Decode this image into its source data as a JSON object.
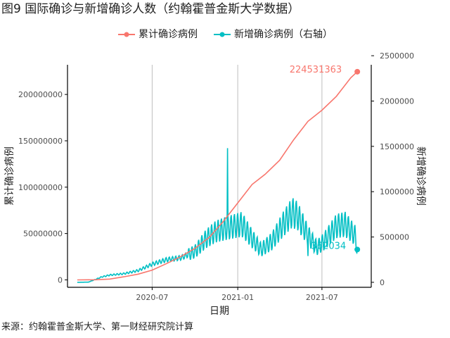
{
  "figure": {
    "title": "图9 国际确诊与新增确诊人数（约翰霍普金斯大学数据）",
    "source": "来源：约翰霍普金斯大学、第一财经研究院计算"
  },
  "colors": {
    "cumulative": "#F8766D",
    "new": "#00BFC4",
    "grid": "#bdbdbd",
    "axis": "#000000"
  },
  "chart_data": {
    "type": "line",
    "xlabel": "日期",
    "ylabel_left": "累计确诊病例",
    "ylabel_right": "新增确诊病例",
    "x_ticks": [
      "2020-07",
      "2021-01",
      "2021-07"
    ],
    "xlim": [
      "2020-01-01",
      "2021-10-15"
    ],
    "ylim_left": [
      -8000000,
      232000000
    ],
    "ylim_right": [
      -55000,
      2400000
    ],
    "y_ticks_left": [
      0,
      50000000,
      100000000,
      150000000,
      200000000
    ],
    "y_ticks_left_labels": [
      "0",
      "50000000",
      "100000000",
      "150000000",
      "200000000"
    ],
    "y_ticks_right": [
      0,
      500000,
      1000000,
      1500000,
      2000000,
      2500000
    ],
    "y_ticks_right_labels": [
      "0",
      "500000",
      "1000000",
      "1500000",
      "2000000",
      "2500000"
    ],
    "grid": "vertical",
    "legend": "top-center",
    "series": [
      {
        "name": "累计确诊病例",
        "axis": "left",
        "end_label": "224531363",
        "points": [
          [
            "2020-01-22",
            0
          ],
          [
            "2020-03-01",
            90000
          ],
          [
            "2020-04-01",
            900000
          ],
          [
            "2020-05-01",
            3300000
          ],
          [
            "2020-06-01",
            6200000
          ],
          [
            "2020-07-01",
            10500000
          ],
          [
            "2020-08-01",
            17600000
          ],
          [
            "2020-09-01",
            25300000
          ],
          [
            "2020-10-01",
            34000000
          ],
          [
            "2020-11-01",
            46000000
          ],
          [
            "2020-12-01",
            63000000
          ],
          [
            "2021-01-01",
            83000000
          ],
          [
            "2021-02-01",
            103000000
          ],
          [
            "2021-03-01",
            114000000
          ],
          [
            "2021-04-01",
            129000000
          ],
          [
            "2021-05-01",
            151000000
          ],
          [
            "2021-06-01",
            171000000
          ],
          [
            "2021-07-01",
            183000000
          ],
          [
            "2021-08-01",
            198000000
          ],
          [
            "2021-09-01",
            218000000
          ],
          [
            "2021-09-15",
            224531363
          ]
        ]
      },
      {
        "name": "新增确诊病例（右轴）",
        "axis": "right",
        "end_label": "362034",
        "baseline": [
          [
            "2020-01-22",
            0
          ],
          [
            "2020-02-15",
            2000
          ],
          [
            "2020-03-15",
            60000
          ],
          [
            "2020-04-01",
            80000
          ],
          [
            "2020-05-01",
            95000
          ],
          [
            "2020-06-01",
            130000
          ],
          [
            "2020-07-01",
            200000
          ],
          [
            "2020-08-01",
            250000
          ],
          [
            "2020-09-01",
            270000
          ],
          [
            "2020-10-01",
            340000
          ],
          [
            "2020-10-25",
            480000
          ],
          [
            "2020-11-15",
            560000
          ],
          [
            "2020-12-10",
            600000
          ],
          [
            "2021-01-10",
            640000
          ],
          [
            "2021-02-01",
            480000
          ],
          [
            "2021-02-20",
            360000
          ],
          [
            "2021-03-15",
            450000
          ],
          [
            "2021-04-10",
            650000
          ],
          [
            "2021-04-28",
            770000
          ],
          [
            "2021-05-10",
            730000
          ],
          [
            "2021-06-01",
            520000
          ],
          [
            "2021-06-20",
            380000
          ],
          [
            "2021-07-05",
            450000
          ],
          [
            "2021-08-01",
            620000
          ],
          [
            "2021-08-20",
            640000
          ],
          [
            "2021-09-10",
            520000
          ],
          [
            "2021-09-15",
            362034
          ]
        ],
        "spikes": [
          [
            "2020-12-10",
            1480000
          ],
          [
            "2021-06-01",
            290000
          ]
        ]
      }
    ]
  }
}
